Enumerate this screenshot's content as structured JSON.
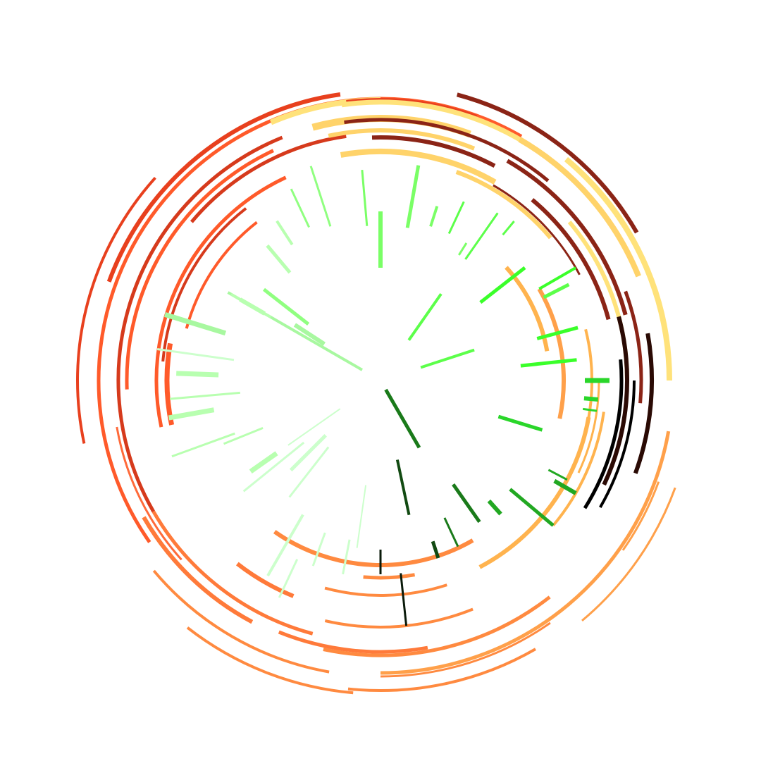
{
  "artwork": {
    "background": "#ffffff",
    "arc_colors": [
      "#e8401e",
      "#ff5a2a",
      "#d63a1c",
      "#ff6a3a",
      "#ff7a3a",
      "#ff8a40",
      "#ffa04a",
      "#ffb34e",
      "#ffd36a",
      "#ffe27a",
      "#8b2416",
      "#5a1508",
      "#2a0a04",
      "#000000"
    ],
    "ray_colors": [
      "#ccffcc",
      "#b8ffb0",
      "#a8f8a0",
      "#90ff80",
      "#7aff66",
      "#5cff4a",
      "#3aff2a",
      "#2ad62a",
      "#22a822",
      "#1a7a1a",
      "#124a12",
      "#0a1a0a"
    ]
  }
}
